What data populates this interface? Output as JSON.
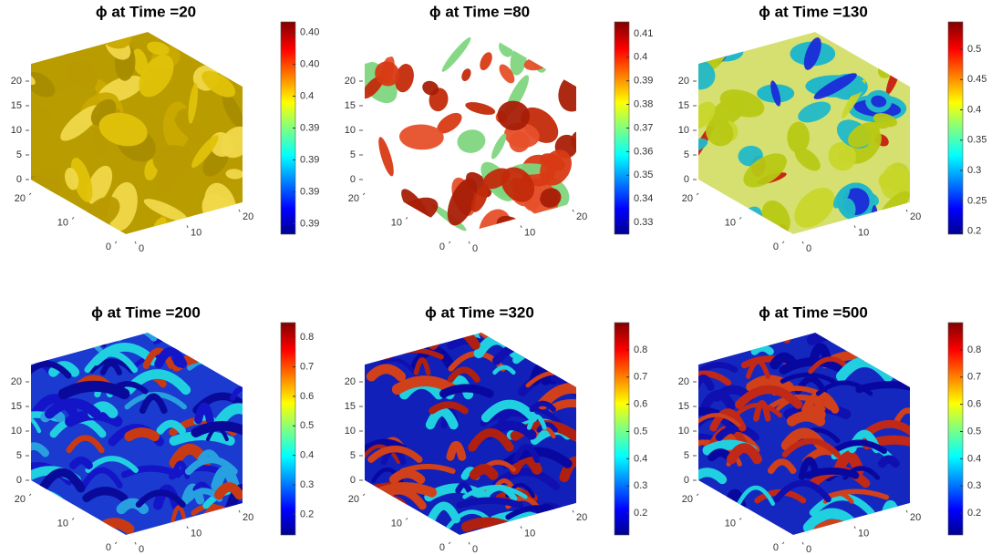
{
  "chart_data": [
    {
      "type": "isosurface",
      "title": "ϕ at Time =20",
      "xticks": [
        0,
        10,
        20
      ],
      "yticks": [
        0,
        10,
        20
      ],
      "zticks": [
        0,
        5,
        10,
        15,
        20
      ],
      "clim": [
        0.3845,
        0.4045
      ],
      "cticks": [
        {
          "value": 0.3855,
          "label": "0.39"
        },
        {
          "value": 0.3885,
          "label": "0.39"
        },
        {
          "value": 0.3915,
          "label": "0.39"
        },
        {
          "value": 0.3945,
          "label": "0.39"
        },
        {
          "value": 0.3975,
          "label": "0.4"
        },
        {
          "value": 0.4005,
          "label": "0.40"
        },
        {
          "value": 0.4035,
          "label": "0.40"
        }
      ]
    },
    {
      "type": "isosurface",
      "title": "ϕ at Time =80",
      "xticks": [
        0,
        10,
        20
      ],
      "yticks": [
        0,
        10,
        20
      ],
      "zticks": [
        0,
        5,
        10,
        15,
        20
      ],
      "clim": [
        0.325,
        0.415
      ],
      "cticks": [
        0.33,
        0.34,
        0.35,
        0.36,
        0.37,
        0.38,
        0.39,
        0.4,
        0.41
      ]
    },
    {
      "type": "isosurface",
      "title": "ϕ at Time =130",
      "xticks": [
        0,
        10,
        20
      ],
      "yticks": [
        0,
        10,
        20
      ],
      "zticks": [
        0,
        5,
        10,
        15,
        20
      ],
      "clim": [
        0.195,
        0.545
      ],
      "cticks": [
        0.2,
        0.25,
        0.3,
        0.35,
        0.4,
        0.45,
        0.5
      ]
    },
    {
      "type": "isosurface",
      "title": "ϕ at Time =200",
      "xticks": [
        0,
        10,
        20
      ],
      "yticks": [
        0,
        10,
        20
      ],
      "zticks": [
        0,
        5,
        10,
        15,
        20
      ],
      "clim": [
        0.13,
        0.85
      ],
      "cticks": [
        0.2,
        0.3,
        0.4,
        0.5,
        0.6,
        0.7,
        0.8
      ]
    },
    {
      "type": "isosurface",
      "title": "ϕ at Time =320",
      "xticks": [
        0,
        10,
        20
      ],
      "yticks": [
        0,
        10,
        20
      ],
      "zticks": [
        0,
        5,
        10,
        15,
        20
      ],
      "clim": [
        0.12,
        0.9
      ],
      "cticks": [
        0.2,
        0.3,
        0.4,
        0.5,
        0.6,
        0.7,
        0.8
      ]
    },
    {
      "type": "isosurface",
      "title": "ϕ at Time =500",
      "xticks": [
        0,
        10,
        20
      ],
      "yticks": [
        0,
        10,
        20
      ],
      "zticks": [
        0,
        5,
        10,
        15,
        20
      ],
      "clim": [
        0.12,
        0.9
      ],
      "cticks": [
        0.2,
        0.3,
        0.4,
        0.5,
        0.6,
        0.7,
        0.8
      ]
    }
  ]
}
